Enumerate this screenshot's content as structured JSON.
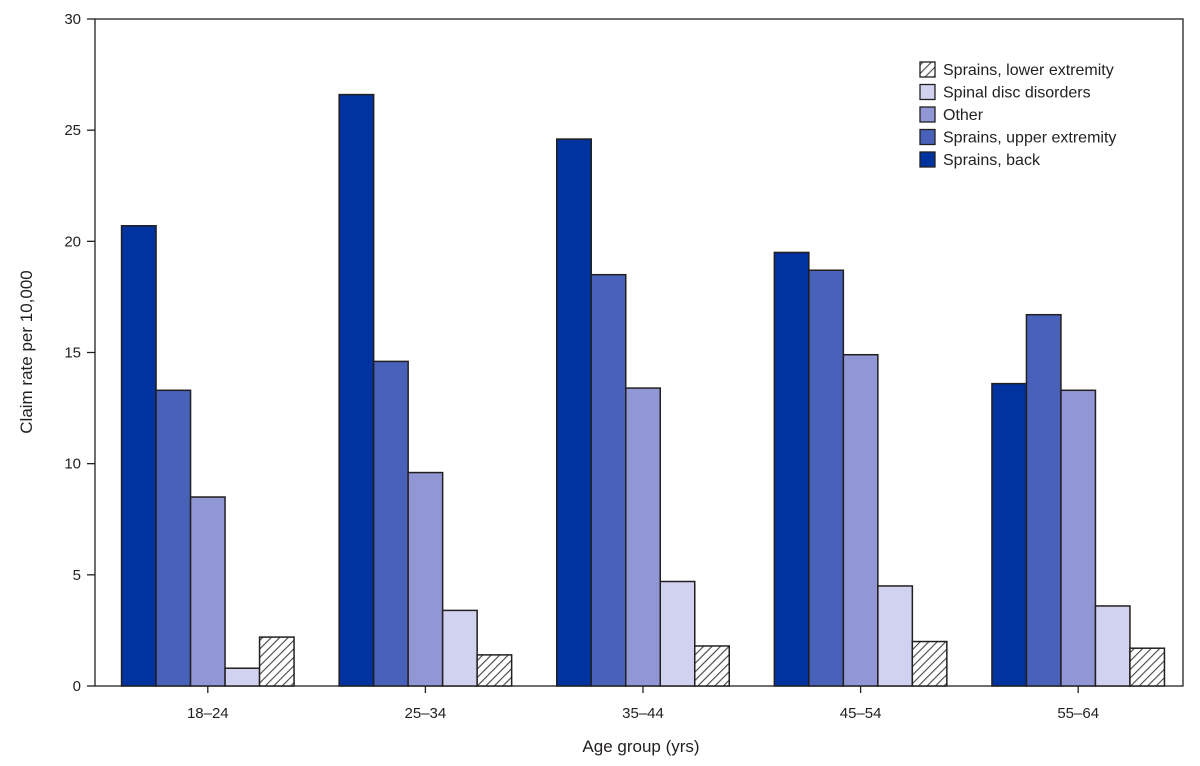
{
  "chart_data": {
    "type": "bar",
    "title": "",
    "xlabel": "Age group (yrs)",
    "ylabel": "Claim rate per 10,000",
    "ylim": [
      0,
      30
    ],
    "yticks": [
      "0",
      "5",
      "10",
      "15",
      "20",
      "25",
      "30"
    ],
    "categories": [
      "18–24",
      "25–34",
      "35–44",
      "45–54",
      "55–64"
    ],
    "grid": false,
    "legend_position": "top-right",
    "series": [
      {
        "name": "Sprains, back",
        "color": "#0033a0",
        "pattern": "solid",
        "values": [
          20.7,
          26.6,
          24.6,
          19.5,
          13.6
        ]
      },
      {
        "name": "Sprains, upper extremity",
        "color": "#4862b9",
        "pattern": "solid",
        "values": [
          13.3,
          14.6,
          18.5,
          18.7,
          16.7
        ]
      },
      {
        "name": "Other",
        "color": "#9097d4",
        "pattern": "solid",
        "values": [
          8.5,
          9.6,
          13.4,
          14.9,
          13.3
        ]
      },
      {
        "name": "Spinal disc disorders",
        "color": "#d1d2ef",
        "pattern": "solid",
        "values": [
          0.8,
          3.4,
          4.7,
          4.5,
          3.6
        ]
      },
      {
        "name": "Sprains, lower extremity",
        "color": "#ffffff",
        "pattern": "hatch",
        "values": [
          2.2,
          1.4,
          1.8,
          2.0,
          1.7
        ]
      }
    ],
    "legend_order": [
      "Sprains, lower extremity",
      "Spinal disc disorders",
      "Other",
      "Sprains, upper extremity",
      "Sprains, back"
    ]
  }
}
